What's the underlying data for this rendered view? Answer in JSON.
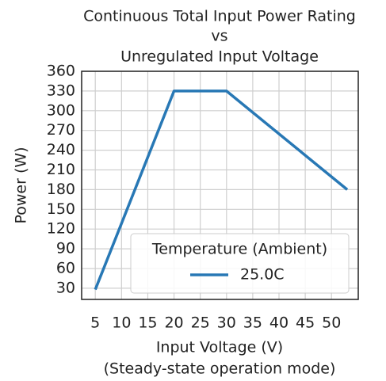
{
  "chart_data": {
    "type": "line",
    "title": [
      "Continuous Total Input Power Rating",
      "vs",
      "Unregulated Input Voltage"
    ],
    "xlabel": [
      "Input Voltage (V)",
      "(Steady-state operation mode)"
    ],
    "ylabel": "Power (W)",
    "x": [
      5,
      20,
      30,
      53
    ],
    "series": [
      {
        "name": "25.0C",
        "color": "#2878b5",
        "values": [
          28,
          330,
          330,
          180
        ]
      }
    ],
    "legend_title": "Temperature (Ambient)",
    "legend": "lower right",
    "xlim": [
      2.4,
      55.1
    ],
    "xticks": [
      5,
      10,
      15,
      20,
      25,
      30,
      35,
      40,
      45,
      50
    ],
    "ylim": [
      13,
      360
    ],
    "yticks": [
      30,
      60,
      90,
      120,
      150,
      180,
      210,
      240,
      270,
      300,
      330,
      360
    ],
    "grid": true
  }
}
